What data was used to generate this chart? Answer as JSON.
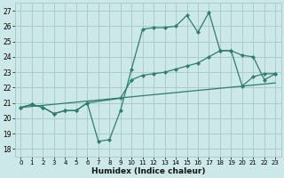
{
  "title": "",
  "xlabel": "Humidex (Indice chaleur)",
  "bg_color": "#cce8e8",
  "grid_color": "#aacccc",
  "line_color": "#2e7d6e",
  "xlim": [
    -0.5,
    23.5
  ],
  "ylim": [
    17.5,
    27.5
  ],
  "yticks": [
    18,
    19,
    20,
    21,
    22,
    23,
    24,
    25,
    26,
    27
  ],
  "xticks": [
    0,
    1,
    2,
    3,
    4,
    5,
    6,
    7,
    8,
    9,
    10,
    11,
    12,
    13,
    14,
    15,
    16,
    17,
    18,
    19,
    20,
    21,
    22,
    23
  ],
  "series1_x": [
    0,
    1,
    2,
    3,
    4,
    5,
    6,
    7,
    8,
    9,
    10,
    11,
    12,
    13,
    14,
    15,
    16,
    17,
    18,
    19,
    20,
    21,
    22,
    23
  ],
  "series1_y": [
    20.7,
    20.9,
    20.7,
    20.3,
    20.5,
    20.5,
    21.0,
    18.5,
    18.6,
    20.5,
    23.2,
    25.8,
    25.9,
    25.9,
    26.0,
    26.7,
    25.6,
    26.9,
    24.4,
    24.4,
    22.1,
    22.7,
    22.9,
    22.9
  ],
  "series2_x": [
    0,
    1,
    2,
    3,
    4,
    5,
    6,
    9,
    10,
    11,
    12,
    13,
    14,
    15,
    16,
    17,
    18,
    19,
    20,
    21,
    22,
    23
  ],
  "series2_y": [
    20.7,
    20.9,
    20.7,
    20.3,
    20.5,
    20.5,
    21.0,
    21.3,
    22.5,
    22.8,
    22.9,
    23.0,
    23.2,
    23.4,
    23.6,
    24.0,
    24.4,
    24.4,
    24.1,
    24.0,
    22.5,
    22.9
  ],
  "series3_x": [
    0,
    23
  ],
  "series3_y": [
    20.7,
    22.3
  ]
}
